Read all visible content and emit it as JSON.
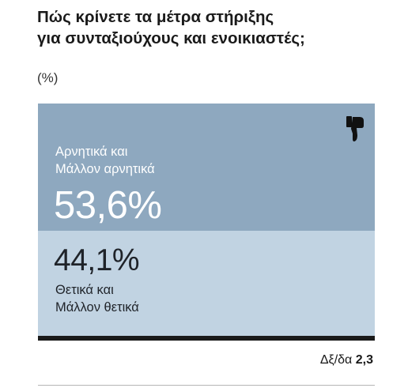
{
  "title_lines": [
    "Πώς κρίνετε τα μέτρα στήριξης",
    "για συνταξιούχους και ενοικιαστές;"
  ],
  "subtitle": "(%)",
  "colors": {
    "negative": "#8ea8bf",
    "positive": "#c1d3e2",
    "base": "#1a1a1a"
  },
  "icon": "thumbs-down-icon",
  "chart_data": {
    "type": "bar",
    "orientation": "stacked-vertical",
    "categories": [
      "Αρνητικά και Μάλλον αρνητικά",
      "Θετικά και Μάλλον θετικά"
    ],
    "values": [
      53.6,
      44.1
    ],
    "value_labels": [
      "53,6%",
      "44,1%"
    ],
    "label_lines": [
      [
        "Αρνητικά και",
        "Μάλλον αρνητικά"
      ],
      [
        "Θετικά και",
        "Μάλλον θετικά"
      ]
    ],
    "other_label": "Δξ/δα",
    "other_value": "2,3"
  }
}
